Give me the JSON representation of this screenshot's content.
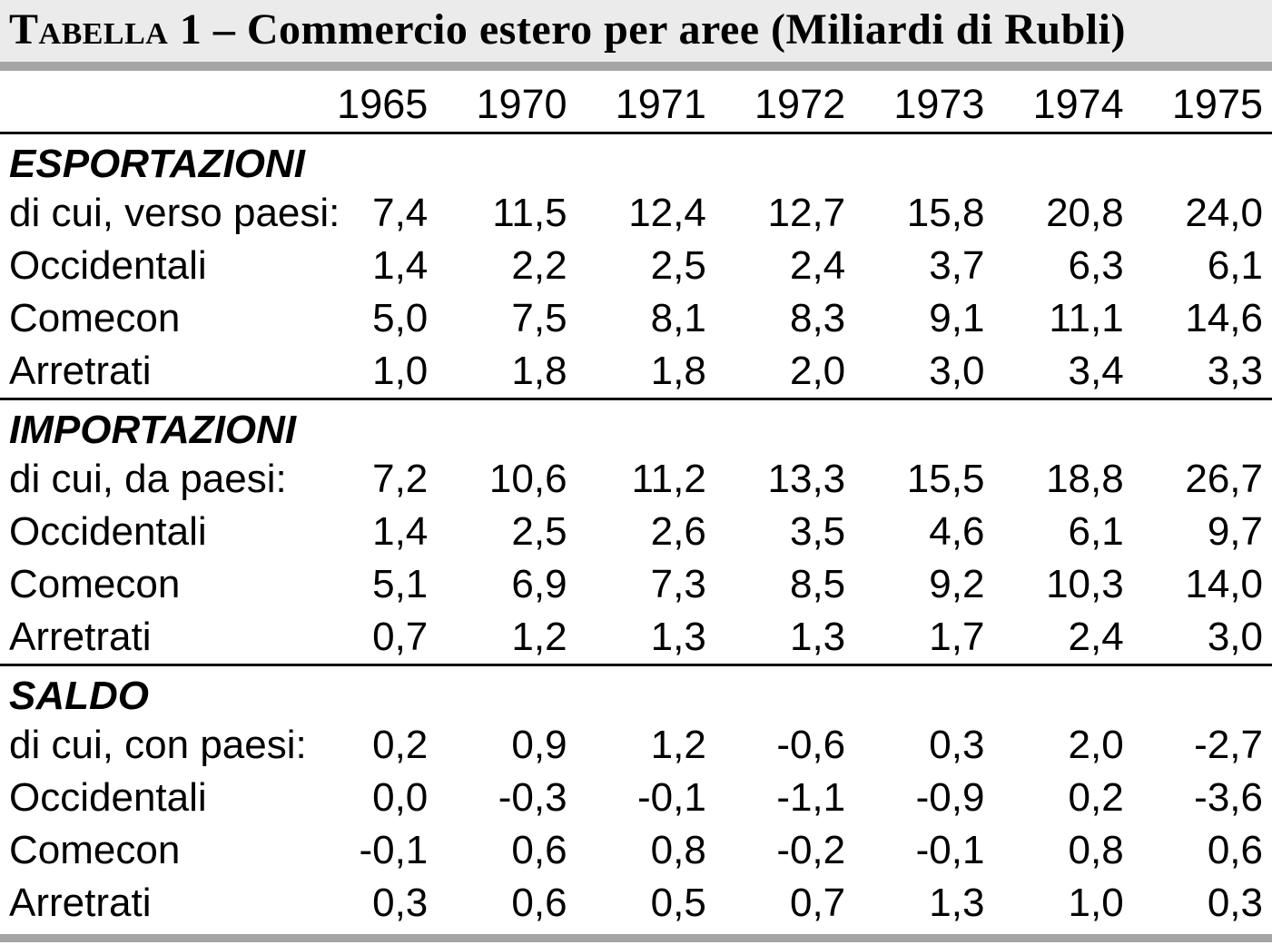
{
  "title": {
    "smallcaps": "Tabella",
    "rest": " 1 – Commercio estero per aree (Miliardi di Rubli)",
    "full": "Tabella 1 – Commercio estero per aree (Miliardi di Rubli)"
  },
  "colors": {
    "title_background": "#ebebeb",
    "divider_bar": "#a5a5a5",
    "rule_line": "#111111",
    "text": "#000000",
    "page_background": "#ffffff"
  },
  "table": {
    "type": "table",
    "title": "Tabella 1 – Commercio estero per aree (Miliardi di Rubli)",
    "unit": "Miliardi di Rubli",
    "columns": [
      "1965",
      "1970",
      "1971",
      "1972",
      "1973",
      "1974",
      "1975"
    ],
    "sections": [
      {
        "id": "esportazioni",
        "heading": "ESPORTAZIONI",
        "rows": [
          {
            "label": "di cui, verso paesi:",
            "values": [
              "7,4",
              "11,5",
              "12,4",
              "12,7",
              "15,8",
              "20,8",
              "24,0"
            ]
          },
          {
            "label": "Occidentali",
            "values": [
              "1,4",
              "2,2",
              "2,5",
              "2,4",
              "3,7",
              "6,3",
              "6,1"
            ]
          },
          {
            "label": "Comecon",
            "values": [
              "5,0",
              "7,5",
              "8,1",
              "8,3",
              "9,1",
              "11,1",
              "14,6"
            ]
          },
          {
            "label": "Arretrati",
            "values": [
              "1,0",
              "1,8",
              "1,8",
              "2,0",
              "3,0",
              "3,4",
              "3,3"
            ]
          }
        ]
      },
      {
        "id": "importazioni",
        "heading": "IMPORTAZIONI",
        "rows": [
          {
            "label": "di cui, da paesi:",
            "values": [
              "7,2",
              "10,6",
              "11,2",
              "13,3",
              "15,5",
              "18,8",
              "26,7"
            ]
          },
          {
            "label": "Occidentali",
            "values": [
              "1,4",
              "2,5",
              "2,6",
              "3,5",
              "4,6",
              "6,1",
              "9,7"
            ]
          },
          {
            "label": "Comecon",
            "values": [
              "5,1",
              "6,9",
              "7,3",
              "8,5",
              "9,2",
              "10,3",
              "14,0"
            ]
          },
          {
            "label": "Arretrati",
            "values": [
              "0,7",
              "1,2",
              "1,3",
              "1,3",
              "1,7",
              "2,4",
              "3,0"
            ]
          }
        ]
      },
      {
        "id": "saldo",
        "heading": "SALDO",
        "rows": [
          {
            "label": "di cui, con paesi:",
            "values": [
              "0,2",
              "0,9",
              "1,2",
              "-0,6",
              "0,3",
              "2,0",
              "-2,7"
            ]
          },
          {
            "label": "Occidentali",
            "values": [
              "0,0",
              "-0,3",
              "-0,1",
              "-1,1",
              "-0,9",
              "0,2",
              "-3,6"
            ]
          },
          {
            "label": "Comecon",
            "values": [
              "-0,1",
              "0,6",
              "0,8",
              "-0,2",
              "-0,1",
              "0,8",
              "0,6"
            ]
          },
          {
            "label": "Arretrati",
            "values": [
              "0,3",
              "0,6",
              "0,5",
              "0,7",
              "1,3",
              "1,0",
              "0,3"
            ]
          }
        ]
      }
    ]
  }
}
